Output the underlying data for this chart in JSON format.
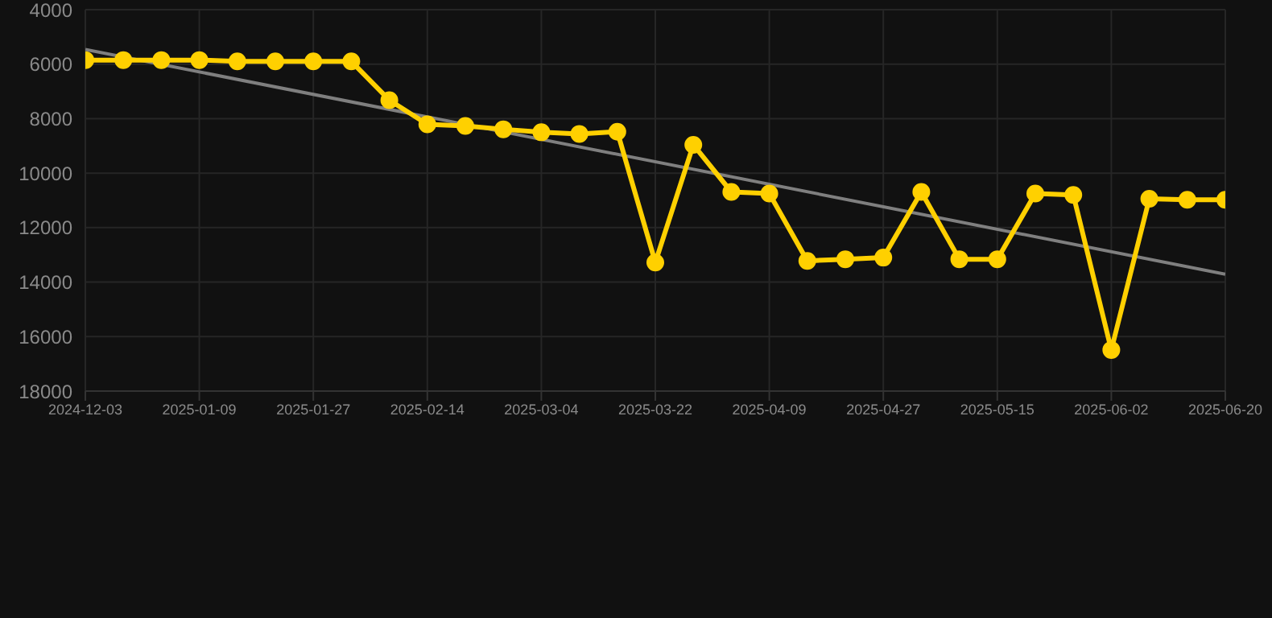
{
  "chart_data": {
    "type": "line",
    "categories": [
      "2024-12-03",
      null,
      null,
      "2025-01-09",
      null,
      null,
      "2025-01-27",
      null,
      null,
      "2025-02-14",
      null,
      null,
      "2025-03-04",
      null,
      null,
      "2025-03-22",
      null,
      null,
      "2025-04-09",
      null,
      null,
      "2025-04-27",
      null,
      null,
      "2025-05-15",
      null,
      null,
      "2025-06-02",
      null,
      null,
      "2025-06-20"
    ],
    "series": [
      {
        "color": "#ffd000",
        "marker": "circle",
        "values": [
          5850,
          5850,
          5850,
          5850,
          5900,
          5900,
          5900,
          5900,
          7320,
          8210,
          8270,
          8390,
          8500,
          8560,
          8480,
          13280,
          8960,
          10690,
          10750,
          13220,
          13160,
          13100,
          10690,
          13160,
          13160,
          10750,
          10800,
          16490,
          10940,
          10980,
          10980
        ]
      },
      {
        "color": "#7f7f7f",
        "marker": "none",
        "values": [
          5460,
          null,
          null,
          null,
          null,
          null,
          null,
          null,
          null,
          null,
          null,
          null,
          null,
          null,
          null,
          null,
          null,
          null,
          null,
          null,
          null,
          null,
          null,
          null,
          null,
          null,
          null,
          null,
          null,
          null,
          13710
        ]
      }
    ],
    "ylim": [
      18000,
      4000
    ],
    "yticks": [
      4000,
      6000,
      8000,
      10000,
      12000,
      14000,
      16000,
      18000
    ],
    "grid": true,
    "legend": false
  }
}
